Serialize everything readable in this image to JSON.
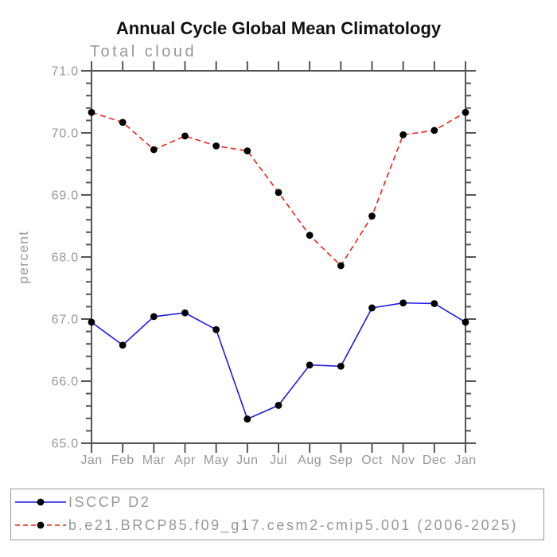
{
  "header": {
    "title": "Annual Cycle Global Mean Climatology"
  },
  "chart_data": {
    "type": "line",
    "title": "Annual Cycle Global Mean Climatology",
    "subtitle": "Total cloud",
    "xlabel": "",
    "ylabel": "percent",
    "categories": [
      "Jan",
      "Feb",
      "Mar",
      "Apr",
      "May",
      "Jun",
      "Jul",
      "Aug",
      "Sep",
      "Oct",
      "Nov",
      "Dec",
      "Jan"
    ],
    "ylim": [
      65.0,
      71.0
    ],
    "y_major_step": 1.0,
    "y_minor_step": 0.2,
    "y_tick_labels": [
      "65.0",
      "66.0",
      "67.0",
      "68.0",
      "69.0",
      "70.0",
      "71.0"
    ],
    "grid": false,
    "legend_position": "bottom-left-box",
    "series": [
      {
        "name": "ISCCP D2",
        "color": "#1b1be8",
        "line_style": "solid",
        "marker": "filled-circle",
        "marker_color": "#000000",
        "values": [
          66.95,
          66.58,
          67.04,
          67.1,
          66.83,
          65.39,
          65.61,
          66.26,
          66.24,
          67.18,
          67.26,
          67.25,
          66.95
        ]
      },
      {
        "name": "b.e21.BRCP85.f09_g17.cesm2-cmip5.001 (2006-2025)",
        "color": "#f22015",
        "line_style": "dashed",
        "marker": "filled-circle",
        "marker_color": "#000000",
        "values": [
          70.33,
          70.17,
          69.73,
          69.95,
          69.79,
          69.71,
          69.04,
          68.35,
          67.86,
          68.66,
          69.97,
          70.04,
          70.33
        ]
      }
    ]
  },
  "legend": {
    "items": [
      {
        "label": "ISCCP D2"
      },
      {
        "label": "b.e21.BRCP85.f09_g17.cesm2-cmip5.001 (2006-2025)"
      }
    ]
  },
  "colors": {
    "series_blue": "#1b1be8",
    "series_red": "#f22015",
    "marker_black": "#000000",
    "axis_gray": "#555555",
    "label_gray": "#989898",
    "title_black": "#111111",
    "legend_border_gray": "#9a9a9a",
    "background": "#ffffff"
  }
}
